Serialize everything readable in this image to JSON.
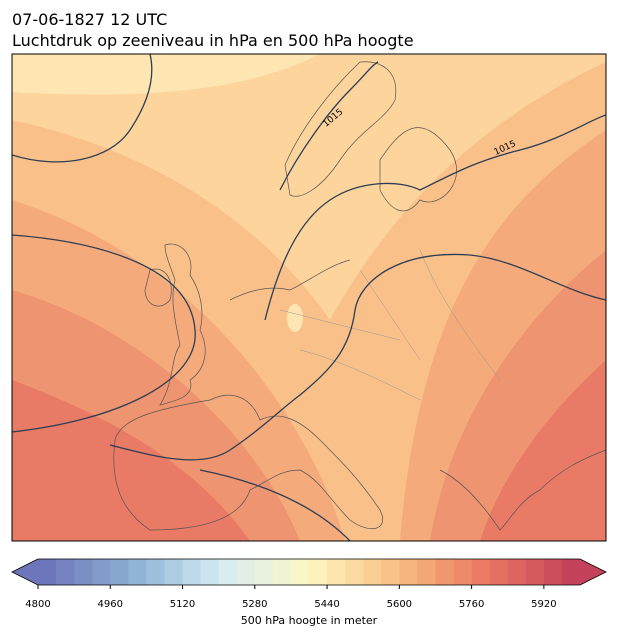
{
  "header": {
    "date": "07-06-1827 12 UTC",
    "subtitle": "Luchtdruk op zeeniveau in hPa en 500 hPa hoogte"
  },
  "map": {
    "contour_labels": [
      "1015",
      "1015"
    ]
  },
  "colorbar": {
    "ticks": [
      "4800",
      "4960",
      "5120",
      "5280",
      "5440",
      "5600",
      "5760",
      "5920"
    ],
    "label": "500 hPa hoogte in meter"
  }
}
